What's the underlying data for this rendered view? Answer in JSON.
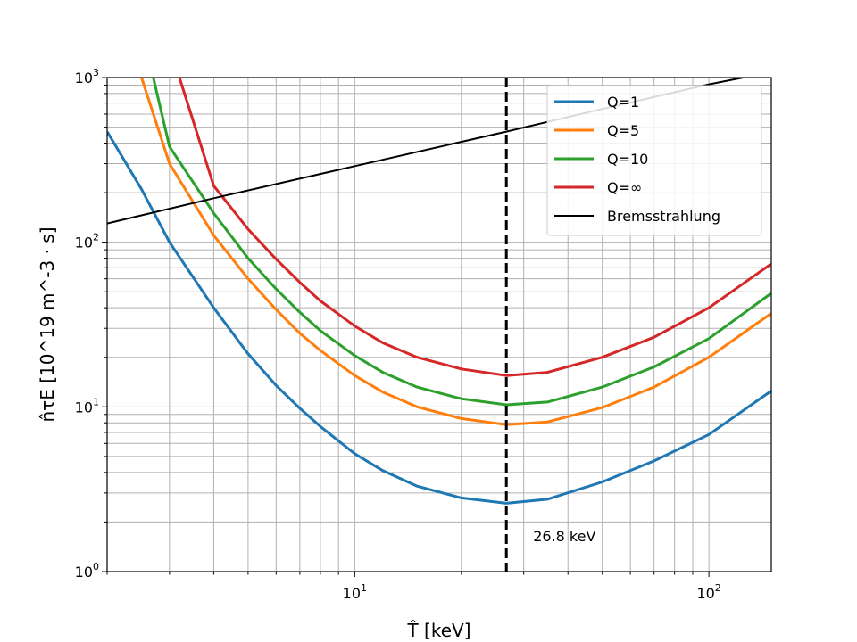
{
  "chart_data": {
    "type": "line",
    "x_scale": "log",
    "y_scale": "log",
    "xlim": [
      2,
      150
    ],
    "ylim": [
      1,
      1000
    ],
    "grid": "major and minor, both axes",
    "legend_position": "top-right",
    "xlabel": "T̂ [keV]",
    "ylabel": "n̂τE [10^19 m^-3 · s]",
    "x_ticks": [
      {
        "value": 10,
        "mantissa": "10",
        "exp": "1"
      },
      {
        "value": 100,
        "mantissa": "10",
        "exp": "2"
      }
    ],
    "y_ticks": [
      {
        "value": 1,
        "mantissa": "10",
        "exp": "0"
      },
      {
        "value": 10,
        "mantissa": "10",
        "exp": "1"
      },
      {
        "value": 100,
        "mantissa": "10",
        "exp": "2"
      },
      {
        "value": 1000,
        "mantissa": "10",
        "exp": "3"
      }
    ],
    "vline": {
      "x": 26.8,
      "label": "26.8 keV",
      "style": "dashed",
      "color": "#000000"
    },
    "series": [
      {
        "name": "Q=1",
        "color": "#1f77b4",
        "points": [
          [
            2,
            470
          ],
          [
            2.5,
            210
          ],
          [
            3,
            100
          ],
          [
            4,
            40
          ],
          [
            5,
            21
          ],
          [
            6,
            13.5
          ],
          [
            7,
            9.8
          ],
          [
            8,
            7.6
          ],
          [
            10,
            5.2
          ],
          [
            12,
            4.1
          ],
          [
            15,
            3.3
          ],
          [
            20,
            2.8
          ],
          [
            26.8,
            2.6
          ],
          [
            35,
            2.75
          ],
          [
            50,
            3.5
          ],
          [
            70,
            4.7
          ],
          [
            100,
            6.8
          ],
          [
            150,
            12.5
          ]
        ]
      },
      {
        "name": "Q=5",
        "color": "#ff7f0e",
        "points": [
          [
            2.5,
            1000
          ],
          [
            3,
            300
          ],
          [
            4,
            110
          ],
          [
            5,
            60
          ],
          [
            6,
            39
          ],
          [
            7,
            28
          ],
          [
            8,
            22
          ],
          [
            10,
            15.5
          ],
          [
            12,
            12.3
          ],
          [
            15,
            10
          ],
          [
            20,
            8.5
          ],
          [
            26.8,
            7.8
          ],
          [
            35,
            8.1
          ],
          [
            50,
            9.9
          ],
          [
            70,
            13.2
          ],
          [
            100,
            20
          ],
          [
            150,
            37
          ]
        ]
      },
      {
        "name": "Q=10",
        "color": "#2ca02c",
        "points": [
          [
            2.7,
            1000
          ],
          [
            3,
            380
          ],
          [
            4,
            150
          ],
          [
            5,
            80
          ],
          [
            6,
            52
          ],
          [
            7,
            37.5
          ],
          [
            8,
            29
          ],
          [
            10,
            20.5
          ],
          [
            12,
            16.2
          ],
          [
            15,
            13.2
          ],
          [
            20,
            11.2
          ],
          [
            26.8,
            10.3
          ],
          [
            35,
            10.7
          ],
          [
            50,
            13.2
          ],
          [
            70,
            17.5
          ],
          [
            100,
            26
          ],
          [
            150,
            49
          ]
        ]
      },
      {
        "name": "Q=∞",
        "color": "#d62728",
        "points": [
          [
            3.2,
            1000
          ],
          [
            4,
            220
          ],
          [
            5,
            120
          ],
          [
            6,
            79
          ],
          [
            7,
            57
          ],
          [
            8,
            44
          ],
          [
            10,
            31
          ],
          [
            12,
            24.5
          ],
          [
            15,
            20
          ],
          [
            20,
            17
          ],
          [
            26.8,
            15.5
          ],
          [
            35,
            16.2
          ],
          [
            50,
            20
          ],
          [
            70,
            26.5
          ],
          [
            100,
            40
          ],
          [
            150,
            74
          ]
        ]
      },
      {
        "name": "Bremsstrahlung",
        "color": "#000000",
        "points": [
          [
            2,
            130
          ],
          [
            4,
            185
          ],
          [
            10,
            290
          ],
          [
            26.8,
            470
          ],
          [
            50,
            645
          ],
          [
            100,
            910
          ],
          [
            125,
            1000
          ]
        ]
      }
    ]
  }
}
